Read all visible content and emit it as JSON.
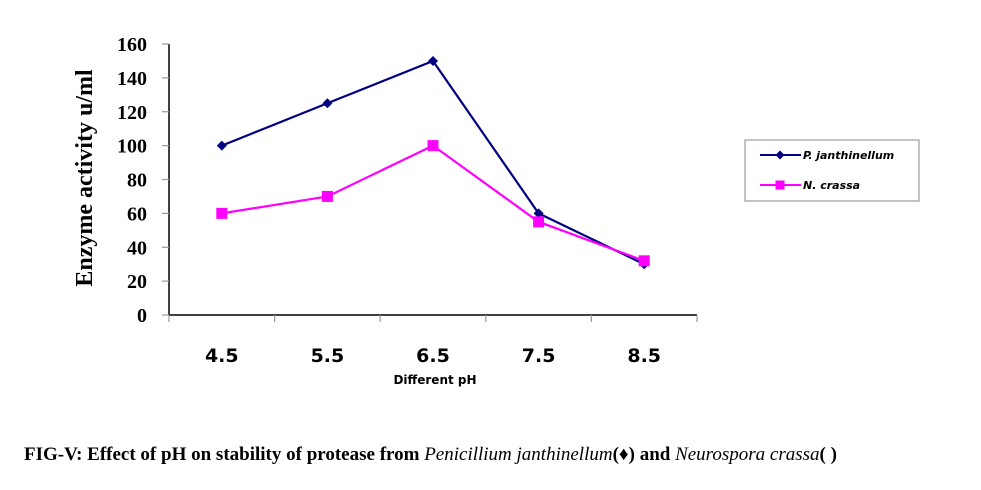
{
  "chart_data": {
    "type": "line",
    "title": "",
    "xlabel": "Different pH",
    "ylabel": "Enzyme activity u/ml",
    "categories": [
      "4.5",
      "5.5",
      "6.5",
      "7.5",
      "8.5"
    ],
    "ylim": [
      0,
      160
    ],
    "yticks": [
      0,
      20,
      40,
      60,
      80,
      100,
      120,
      140,
      160
    ],
    "grid": false,
    "legend_position": "right",
    "series": [
      {
        "name": "P. janthinellum",
        "color": "#000080",
        "marker": "diamond",
        "values": [
          100,
          125,
          150,
          60,
          30
        ]
      },
      {
        "name": "N. crassa",
        "color": "#ff00ff",
        "marker": "square",
        "values": [
          60,
          70,
          100,
          55,
          32
        ]
      }
    ]
  },
  "caption": {
    "prefix": "FIG-V: Effect of pH on stability of protease from ",
    "species1": "Penicillium janthinellum",
    "marker1": "(♦)",
    "joiner": " and ",
    "species2": "Neurospora crassa",
    "marker2": "(  )"
  }
}
